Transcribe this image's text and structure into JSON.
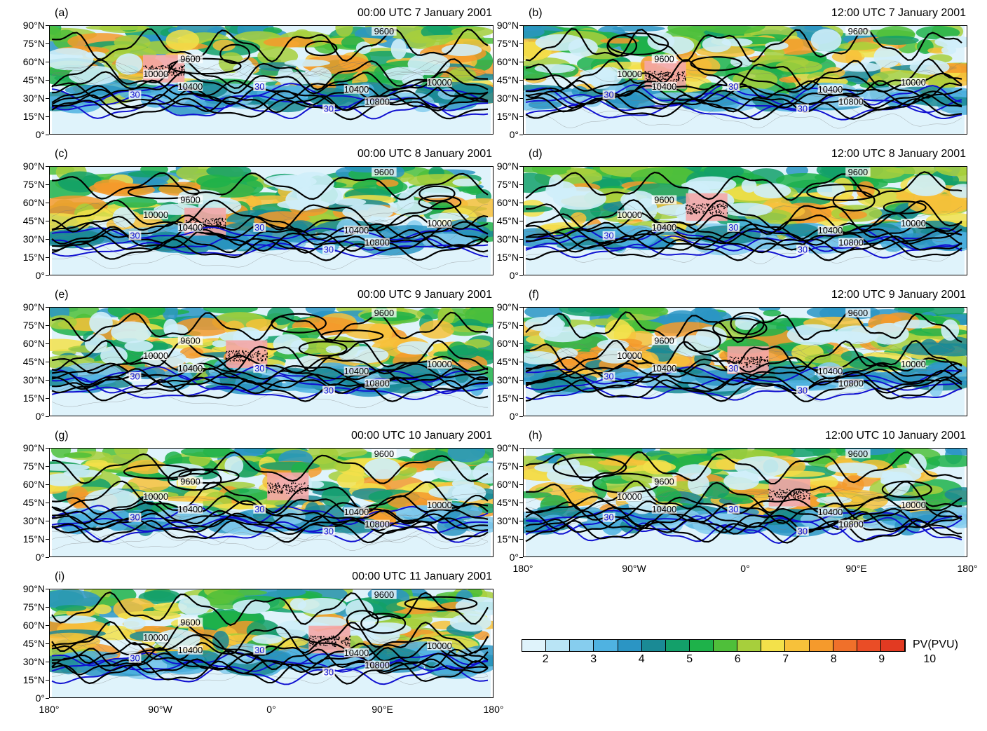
{
  "panels": [
    {
      "id": "a",
      "label": "(a)",
      "title": "00:00 UTC 7 January 2001"
    },
    {
      "id": "b",
      "label": "(b)",
      "title": "12:00 UTC 7 January 2001"
    },
    {
      "id": "c",
      "label": "(c)",
      "title": "00:00 UTC 8 January 2001"
    },
    {
      "id": "d",
      "label": "(d)",
      "title": "12:00 UTC 8 January 2001"
    },
    {
      "id": "e",
      "label": "(e)",
      "title": "00:00 UTC 9 January 2001"
    },
    {
      "id": "f",
      "label": "(f)",
      "title": "12:00 UTC 9 January 2001"
    },
    {
      "id": "g",
      "label": "(g)",
      "title": "00:00 UTC 10 January 2001"
    },
    {
      "id": "h",
      "label": "(h)",
      "title": "12:00 UTC 10 January 2001"
    },
    {
      "id": "i",
      "label": "(i)",
      "title": "00:00 UTC 11 January 2001"
    }
  ],
  "lat_ticks": [
    "90°N",
    "75°N",
    "60°N",
    "45°N",
    "30°N",
    "15°N",
    "0°"
  ],
  "lon_ticks": [
    "180°",
    "90°W",
    "0°",
    "90°E",
    "180°"
  ],
  "contour_labels": {
    "height": [
      "9600",
      "10000",
      "10400",
      "10800"
    ],
    "wind": "30"
  },
  "colorbar": {
    "title": "PV(PVU)",
    "labels": [
      "2",
      "3",
      "4",
      "5",
      "6",
      "7",
      "8",
      "9",
      "10"
    ],
    "colors": [
      "#dff3fb",
      "#b9e4f5",
      "#86cdee",
      "#4fb2e1",
      "#2b95c4",
      "#1a8a95",
      "#13a06a",
      "#1eb24a",
      "#4fbf3a",
      "#a7cf3c",
      "#f3e14a",
      "#f7c13a",
      "#f59a2c",
      "#f0702a",
      "#ea4d26",
      "#e23a22"
    ]
  },
  "colors": {
    "height_contour": "#000000",
    "wind_contour": "#1010d0",
    "trajectory": "#f4a6a6"
  }
}
